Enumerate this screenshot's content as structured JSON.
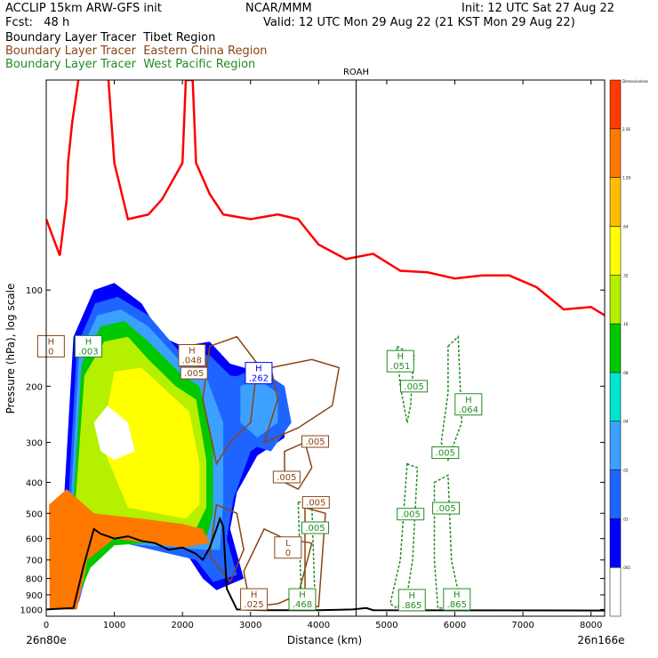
{
  "header": {
    "model": "ACCLIP 15km ARW-GFS init",
    "org": "NCAR/MMM",
    "init": "Init: 12 UTC Sat 27 Aug 22",
    "fcst": "Fcst:   48 h",
    "valid": "Valid: 12 UTC Mon 29 Aug 22 (21 KST Mon 29 Aug 22)",
    "legend": [
      {
        "text": "Boundary Layer Tracer  Tibet Region",
        "color": "#000000"
      },
      {
        "text": "Boundary Layer Tracer  Eastern China Region",
        "color": "#8B4513"
      },
      {
        "text": "Boundary Layer Tracer  West Pacific Region",
        "color": "#228B22"
      }
    ]
  },
  "chart_data": {
    "type": "cross-section",
    "xlabel": "Distance (km)",
    "ylabel": "Pressure (hPa), log scale",
    "xlim": [
      0,
      8200
    ],
    "ylim": [
      1050,
      22
    ],
    "y_scale": "log",
    "x_ticks": [
      0,
      1000,
      2000,
      3000,
      4000,
      5000,
      6000,
      7000,
      8000
    ],
    "y_ticks": [
      100,
      200,
      300,
      400,
      500,
      600,
      700,
      800,
      900,
      1000
    ],
    "left_endpoint": "26n80e",
    "right_endpoint": "26n166e",
    "marker": {
      "label": "ROAH",
      "x": 4550
    },
    "tropopause_line": {
      "color": "#ff0000",
      "points": [
        [
          0,
          60
        ],
        [
          200,
          78
        ],
        [
          300,
          52
        ],
        [
          320,
          40
        ],
        [
          380,
          30
        ],
        [
          500,
          20
        ],
        [
          900,
          20
        ],
        [
          1000,
          40
        ],
        [
          1200,
          60
        ],
        [
          1500,
          58
        ],
        [
          1700,
          52
        ],
        [
          2000,
          40
        ],
        [
          2050,
          22
        ],
        [
          2150,
          22
        ],
        [
          2200,
          40
        ],
        [
          2400,
          50
        ],
        [
          2600,
          58
        ],
        [
          3000,
          60
        ],
        [
          3400,
          58
        ],
        [
          3700,
          60
        ],
        [
          4000,
          72
        ],
        [
          4400,
          80
        ],
        [
          4800,
          77
        ],
        [
          5200,
          87
        ],
        [
          5600,
          88
        ],
        [
          6000,
          92
        ],
        [
          6400,
          90
        ],
        [
          6800,
          90
        ],
        [
          7200,
          98
        ],
        [
          7600,
          115
        ],
        [
          8000,
          113
        ],
        [
          8200,
          120
        ]
      ]
    },
    "terrain": [
      [
        0,
        1000
      ],
      [
        400,
        990
      ],
      [
        550,
        730
      ],
      [
        700,
        560
      ],
      [
        800,
        580
      ],
      [
        1000,
        600
      ],
      [
        1200,
        590
      ],
      [
        1400,
        610
      ],
      [
        1600,
        620
      ],
      [
        1800,
        650
      ],
      [
        2000,
        640
      ],
      [
        2200,
        670
      ],
      [
        2300,
        700
      ],
      [
        2400,
        640
      ],
      [
        2500,
        560
      ],
      [
        2550,
        520
      ],
      [
        2600,
        550
      ],
      [
        2650,
        860
      ],
      [
        2800,
        1000
      ],
      [
        3200,
        1005
      ],
      [
        4000,
        1005
      ],
      [
        4500,
        1000
      ],
      [
        4700,
        990
      ],
      [
        4800,
        1005
      ],
      [
        8200,
        1008
      ]
    ],
    "colorbar": {
      "title": "Dimensionless",
      "levels": [
        ".005",
        ".01",
        ".02",
        ".04",
        ".08",
        ".16",
        ".32",
        ".64",
        "1.28",
        "2.56"
      ],
      "colors": [
        "#ffffff",
        "#0000ff",
        "#1e64ff",
        "#3ca0ff",
        "#00e5d0",
        "#00c800",
        "#b4f000",
        "#ffff00",
        "#ffbe00",
        "#ff7800",
        "#ff3c00"
      ]
    },
    "annotations": [
      {
        "text": [
          "H",
          "0"
        ],
        "x": 70,
        "p": 150,
        "color": "#8B4513"
      },
      {
        "text": [
          "H",
          ".003"
        ],
        "x": 620,
        "p": 150,
        "color": "#228B22"
      },
      {
        "text": [
          "H",
          ".048"
        ],
        "x": 2140,
        "p": 160,
        "color": "#8B4513"
      },
      {
        "text": [
          ".005"
        ],
        "x": 2170,
        "p": 182,
        "color": "#8B4513"
      },
      {
        "text": [
          "H",
          ".262"
        ],
        "x": 3120,
        "p": 182,
        "color": "#0000ff"
      },
      {
        "text": [
          "H",
          ".051"
        ],
        "x": 5200,
        "p": 167,
        "color": "#228B22"
      },
      {
        "text": [
          ".005"
        ],
        "x": 5400,
        "p": 200,
        "color": "#228B22"
      },
      {
        "text": [
          "H",
          ".064"
        ],
        "x": 6200,
        "p": 228,
        "color": "#228B22"
      },
      {
        "text": [
          ".005"
        ],
        "x": 3950,
        "p": 298,
        "color": "#8B4513"
      },
      {
        "text": [
          ".005"
        ],
        "x": 5860,
        "p": 323,
        "color": "#228B22"
      },
      {
        "text": [
          ".005"
        ],
        "x": 3530,
        "p": 385,
        "color": "#8B4513"
      },
      {
        "text": [
          ".005"
        ],
        "x": 3960,
        "p": 462,
        "color": "#8B4513"
      },
      {
        "text": [
          ".005"
        ],
        "x": 5350,
        "p": 503,
        "color": "#228B22"
      },
      {
        "text": [
          ".005"
        ],
        "x": 5870,
        "p": 482,
        "color": "#228B22"
      },
      {
        "text": [
          ".005"
        ],
        "x": 3950,
        "p": 555,
        "color": "#228B22"
      },
      {
        "text": [
          "L",
          "0"
        ],
        "x": 3550,
        "p": 640,
        "color": "#8B4513"
      },
      {
        "text": [
          "H",
          ".025"
        ],
        "x": 3050,
        "p": 930,
        "color": "#8B4513"
      },
      {
        "text": [
          "H",
          ".468"
        ],
        "x": 3760,
        "p": 930,
        "color": "#228B22"
      },
      {
        "text": [
          "H",
          ".865"
        ],
        "x": 5370,
        "p": 935,
        "color": "#228B22"
      },
      {
        "text": [
          "H",
          ".865"
        ],
        "x": 6030,
        "p": 930,
        "color": "#228B22"
      }
    ]
  }
}
